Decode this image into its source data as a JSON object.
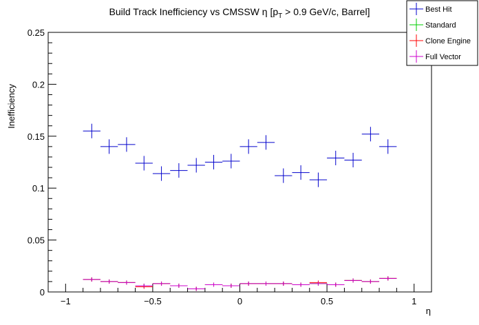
{
  "chart_data": {
    "type": "scatter",
    "title_main": "Build Track Inefficiency vs CMSSW η [p",
    "title_sub": "T",
    "title_tail": " > 0.9 GeV/c, Barrel]",
    "xlabel": "η",
    "ylabel": "Inefficiency",
    "xlim": [
      -1.1,
      1.1
    ],
    "ylim": [
      0,
      0.25
    ],
    "xticks": [
      -1,
      -0.5,
      0,
      0.5,
      1
    ],
    "xtick_labels": [
      "−1",
      "−0.5",
      "0",
      "0.5",
      "1"
    ],
    "yticks": [
      0,
      0.05,
      0.1,
      0.15,
      0.2,
      0.25
    ],
    "ytick_labels": [
      "0",
      "0.05",
      "0.1",
      "0.15",
      "0.2",
      "0.25"
    ],
    "x": [
      -0.85,
      -0.75,
      -0.65,
      -0.55,
      -0.45,
      -0.35,
      -0.25,
      -0.15,
      -0.05,
      0.05,
      0.15,
      0.25,
      0.35,
      0.45,
      0.55,
      0.65,
      0.75,
      0.85
    ],
    "xerr": 0.05,
    "series": [
      {
        "name": "Best Hit",
        "color": "#0000cc",
        "values": [
          0.155,
          0.14,
          0.142,
          0.124,
          0.114,
          0.117,
          0.122,
          0.125,
          0.126,
          0.14,
          0.144,
          0.112,
          0.115,
          0.108,
          0.129,
          0.127,
          0.152,
          0.14
        ],
        "yerr": 0.007
      },
      {
        "name": "Standard",
        "color": "#00cc00",
        "values": [
          0.012,
          0.01,
          0.009,
          0.006,
          0.008,
          0.006,
          0.003,
          0.007,
          0.006,
          0.008,
          0.008,
          0.008,
          0.007,
          0.008,
          0.007,
          0.011,
          0.01,
          0.013
        ],
        "yerr": 0.002
      },
      {
        "name": "Clone Engine",
        "color": "#ff0000",
        "values": [
          0.012,
          0.01,
          0.009,
          0.005,
          0.008,
          0.006,
          0.003,
          0.007,
          0.006,
          0.008,
          0.008,
          0.008,
          0.007,
          0.009,
          0.007,
          0.011,
          0.01,
          0.013
        ],
        "yerr": 0.002
      },
      {
        "name": "Full Vector",
        "color": "#cc00cc",
        "values": [
          0.012,
          0.01,
          0.009,
          0.006,
          0.008,
          0.006,
          0.003,
          0.007,
          0.006,
          0.008,
          0.008,
          0.008,
          0.007,
          0.008,
          0.007,
          0.011,
          0.01,
          0.013
        ],
        "yerr": 0.002
      }
    ],
    "legend_placement": "top-right"
  }
}
